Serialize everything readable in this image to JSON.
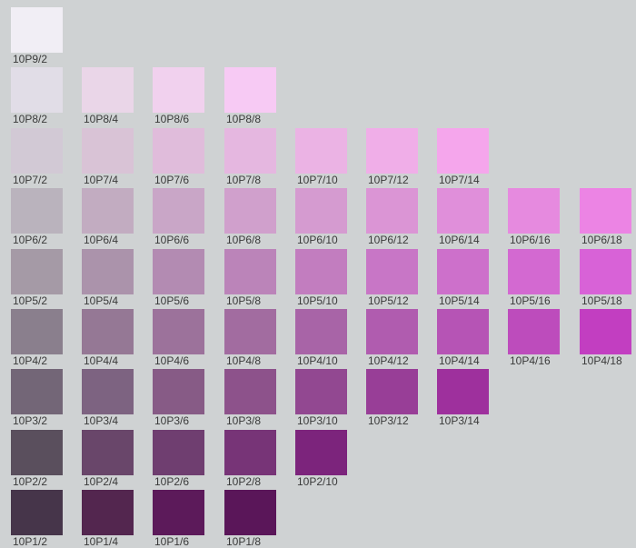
{
  "rows": [
    {
      "swatches": [
        {
          "label": "10P9/2",
          "color": "#f1eef5"
        }
      ]
    },
    {
      "swatches": [
        {
          "label": "10P8/2",
          "color": "#e1dde7"
        },
        {
          "label": "10P8/4",
          "color": "#ead6e8"
        },
        {
          "label": "10P8/6",
          "color": "#f1d1ee"
        },
        {
          "label": "10P8/8",
          "color": "#f7caf4"
        }
      ]
    },
    {
      "swatches": [
        {
          "label": "10P7/2",
          "color": "#d2c9d5"
        },
        {
          "label": "10P7/4",
          "color": "#d9c3d6"
        },
        {
          "label": "10P7/6",
          "color": "#e0bcdb"
        },
        {
          "label": "10P7/8",
          "color": "#e5b7e0"
        },
        {
          "label": "10P7/10",
          "color": "#ebb3e4"
        },
        {
          "label": "10P7/12",
          "color": "#f0aee8"
        },
        {
          "label": "10P7/14",
          "color": "#f5a6ec"
        }
      ]
    },
    {
      "swatches": [
        {
          "label": "10P6/2",
          "color": "#bab3bd"
        },
        {
          "label": "10P6/4",
          "color": "#c2acc1"
        },
        {
          "label": "10P6/6",
          "color": "#c9a6c7"
        },
        {
          "label": "10P6/8",
          "color": "#d0a0cc"
        },
        {
          "label": "10P6/10",
          "color": "#d59bd0"
        },
        {
          "label": "10P6/12",
          "color": "#db95d5"
        },
        {
          "label": "10P6/14",
          "color": "#e08fda"
        },
        {
          "label": "10P6/16",
          "color": "#e68adf"
        },
        {
          "label": "10P6/18",
          "color": "#ec84e4"
        }
      ]
    },
    {
      "swatches": [
        {
          "label": "10P5/2",
          "color": "#a59aa6"
        },
        {
          "label": "10P5/4",
          "color": "#ab93ab"
        },
        {
          "label": "10P5/6",
          "color": "#b38bb2"
        },
        {
          "label": "10P5/8",
          "color": "#bb84b9"
        },
        {
          "label": "10P5/10",
          "color": "#c27dbf"
        },
        {
          "label": "10P5/12",
          "color": "#c876c6"
        },
        {
          "label": "10P5/14",
          "color": "#cd70cb"
        },
        {
          "label": "10P5/16",
          "color": "#d369d1"
        },
        {
          "label": "10P5/18",
          "color": "#d862d7"
        }
      ]
    },
    {
      "swatches": [
        {
          "label": "10P4/2",
          "color": "#8a7f8d"
        },
        {
          "label": "10P4/4",
          "color": "#957895"
        },
        {
          "label": "10P4/6",
          "color": "#9c729b"
        },
        {
          "label": "10P4/8",
          "color": "#a26ca0"
        },
        {
          "label": "10P4/10",
          "color": "#a864a7"
        },
        {
          "label": "10P4/12",
          "color": "#b05caf"
        },
        {
          "label": "10P4/14",
          "color": "#b654b5"
        },
        {
          "label": "10P4/16",
          "color": "#bd4cbc"
        },
        {
          "label": "10P4/18",
          "color": "#c23ec1"
        }
      ]
    },
    {
      "swatches": [
        {
          "label": "10P3/2",
          "color": "#736677"
        },
        {
          "label": "10P3/4",
          "color": "#7d6381"
        },
        {
          "label": "10P3/6",
          "color": "#875b86"
        },
        {
          "label": "10P3/8",
          "color": "#8d528b"
        },
        {
          "label": "10P3/10",
          "color": "#924891"
        },
        {
          "label": "10P3/12",
          "color": "#983e97"
        },
        {
          "label": "10P3/14",
          "color": "#9e309d"
        }
      ]
    },
    {
      "swatches": [
        {
          "label": "10P2/2",
          "color": "#5a4f5d"
        },
        {
          "label": "10P2/4",
          "color": "#69466a"
        },
        {
          "label": "10P2/6",
          "color": "#6f3e70"
        },
        {
          "label": "10P2/8",
          "color": "#773477"
        },
        {
          "label": "10P2/10",
          "color": "#7c247c"
        }
      ]
    },
    {
      "swatches": [
        {
          "label": "10P1/2",
          "color": "#46354a"
        },
        {
          "label": "10P1/4",
          "color": "#53264f"
        },
        {
          "label": "10P1/6",
          "color": "#5c1a5a"
        },
        {
          "label": "10P1/8",
          "color": "#5a1659"
        }
      ]
    }
  ]
}
